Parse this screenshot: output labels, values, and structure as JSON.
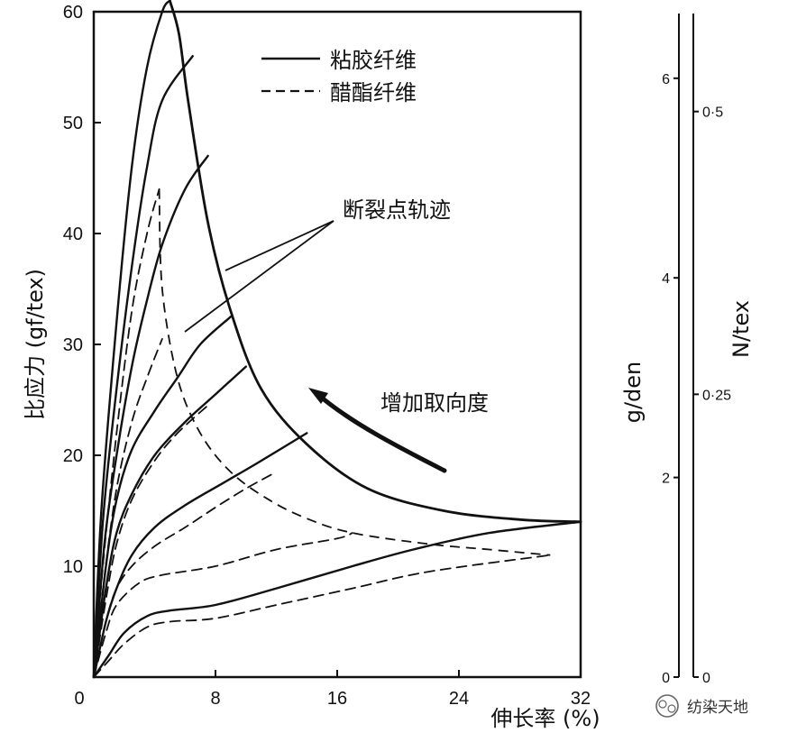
{
  "chart_data": {
    "type": "line",
    "xlabel": "伸长率 (%)",
    "ylabel": "比应力 (gf/tex)",
    "right_axis_1_label": "g/den",
    "right_axis_2_label": "N/tex",
    "xlim": [
      0,
      32
    ],
    "ylim": [
      0,
      60
    ],
    "x_ticks": [
      "0",
      "8",
      "16",
      "24",
      "32"
    ],
    "y_ticks": [
      "10",
      "20",
      "30",
      "40",
      "50",
      "60"
    ],
    "right_axis_1_ticks": [
      "0",
      "2",
      "4",
      "6"
    ],
    "right_axis_2_ticks": [
      "0",
      "0·25",
      "0·5"
    ],
    "legend": [
      {
        "label": "粘胶纤维",
        "style": "solid"
      },
      {
        "label": "醋酯纤维",
        "style": "dashed"
      }
    ],
    "annotations": {
      "break_locus": "断裂点轨迹",
      "orientation": "增加取向度"
    },
    "series": [
      {
        "fiber": "viscose",
        "style": "solid",
        "points": [
          [
            0,
            0
          ],
          [
            0.5,
            15
          ],
          [
            1.5,
            32
          ],
          [
            2.5,
            46
          ],
          [
            3.5,
            55
          ],
          [
            4.5,
            60
          ],
          [
            5,
            61
          ]
        ]
      },
      {
        "fiber": "viscose",
        "style": "solid",
        "points": [
          [
            0,
            0
          ],
          [
            0.6,
            14
          ],
          [
            1.5,
            26
          ],
          [
            2.5,
            37
          ],
          [
            3.5,
            46
          ],
          [
            4.5,
            52
          ],
          [
            6.5,
            56
          ]
        ]
      },
      {
        "fiber": "viscose",
        "style": "solid",
        "points": [
          [
            0,
            0
          ],
          [
            0.7,
            12
          ],
          [
            1.5,
            20
          ],
          [
            2.5,
            28
          ],
          [
            3.5,
            34
          ],
          [
            4.5,
            39
          ],
          [
            6,
            44
          ],
          [
            7.5,
            47
          ]
        ]
      },
      {
        "fiber": "viscose",
        "style": "solid",
        "points": [
          [
            0,
            0
          ],
          [
            0.8,
            10
          ],
          [
            1.5,
            16
          ],
          [
            2.5,
            20.5
          ],
          [
            4,
            24
          ],
          [
            5.5,
            27
          ],
          [
            7,
            30
          ],
          [
            9,
            32.5
          ]
        ]
      },
      {
        "fiber": "viscose",
        "style": "solid",
        "points": [
          [
            0,
            0
          ],
          [
            0.8,
            8
          ],
          [
            1.5,
            13
          ],
          [
            2.5,
            16.5
          ],
          [
            4,
            20
          ],
          [
            6,
            23
          ],
          [
            8,
            25.5
          ],
          [
            10,
            28
          ]
        ]
      },
      {
        "fiber": "viscose",
        "style": "solid",
        "points": [
          [
            0,
            0
          ],
          [
            0.8,
            5
          ],
          [
            1.5,
            8
          ],
          [
            2.5,
            11
          ],
          [
            4,
            13.5
          ],
          [
            6,
            15.5
          ],
          [
            8.5,
            17.5
          ],
          [
            11,
            19.5
          ],
          [
            14,
            22
          ]
        ]
      },
      {
        "fiber": "viscose",
        "style": "solid",
        "points": [
          [
            0,
            0
          ],
          [
            1,
            2
          ],
          [
            2,
            4
          ],
          [
            3.5,
            5.5
          ],
          [
            5,
            6
          ],
          [
            8,
            6.5
          ],
          [
            12,
            8
          ],
          [
            17,
            10
          ],
          [
            21,
            11.5
          ],
          [
            26,
            13
          ],
          [
            32,
            14
          ]
        ]
      },
      {
        "fiber": "acetate",
        "style": "dashed",
        "points": [
          [
            0,
            0
          ],
          [
            0.6,
            10
          ],
          [
            1.5,
            22
          ],
          [
            2.5,
            33
          ],
          [
            3.5,
            40
          ],
          [
            4.3,
            44
          ]
        ]
      },
      {
        "fiber": "acetate",
        "style": "dashed",
        "points": [
          [
            0,
            0
          ],
          [
            0.7,
            9
          ],
          [
            1.5,
            17
          ],
          [
            2.5,
            23
          ],
          [
            3.5,
            27
          ],
          [
            4.5,
            30.5
          ]
        ]
      },
      {
        "fiber": "acetate",
        "style": "dashed",
        "points": [
          [
            0,
            0
          ],
          [
            0.8,
            7
          ],
          [
            1.5,
            12
          ],
          [
            2.5,
            16
          ],
          [
            4,
            19.5
          ],
          [
            5.5,
            22
          ],
          [
            7.5,
            24.5
          ]
        ]
      },
      {
        "fiber": "acetate",
        "style": "dashed",
        "points": [
          [
            0,
            0
          ],
          [
            0.8,
            5
          ],
          [
            1.5,
            8
          ],
          [
            2.5,
            10
          ],
          [
            4,
            11.8
          ],
          [
            6,
            13.5
          ],
          [
            8,
            15.3
          ],
          [
            10,
            17
          ],
          [
            12,
            18.5
          ]
        ]
      },
      {
        "fiber": "acetate",
        "style": "dashed",
        "points": [
          [
            0,
            0
          ],
          [
            0.8,
            4
          ],
          [
            1.5,
            6.5
          ],
          [
            3,
            8.5
          ],
          [
            4.5,
            9.2
          ],
          [
            8,
            10
          ],
          [
            12,
            11.5
          ],
          [
            16,
            12.5
          ],
          [
            17,
            13
          ]
        ]
      },
      {
        "fiber": "acetate",
        "style": "dashed",
        "points": [
          [
            0,
            0
          ],
          [
            1,
            1.5
          ],
          [
            2,
            3
          ],
          [
            3.5,
            4.5
          ],
          [
            5,
            5
          ],
          [
            8,
            5.3
          ],
          [
            12,
            6.5
          ],
          [
            17,
            8
          ],
          [
            22,
            9.5
          ],
          [
            30,
            11
          ]
        ]
      }
    ],
    "break_locus_viscose": [
      [
        5,
        61
      ],
      [
        5.6,
        58
      ],
      [
        6.2,
        52
      ],
      [
        7.5,
        41
      ],
      [
        9,
        33
      ],
      [
        11,
        26
      ],
      [
        14,
        21
      ],
      [
        18,
        17
      ],
      [
        23,
        15
      ],
      [
        28,
        14.2
      ],
      [
        32,
        14
      ]
    ],
    "break_locus_acetate": [
      [
        4.3,
        44
      ],
      [
        4.5,
        35
      ],
      [
        5.5,
        27
      ],
      [
        7,
        22
      ],
      [
        9,
        18.5
      ],
      [
        11.5,
        16
      ],
      [
        14,
        14.3
      ],
      [
        17,
        13
      ],
      [
        22,
        12
      ],
      [
        26,
        11.5
      ],
      [
        30,
        11
      ]
    ]
  },
  "watermark": "纺染天地"
}
